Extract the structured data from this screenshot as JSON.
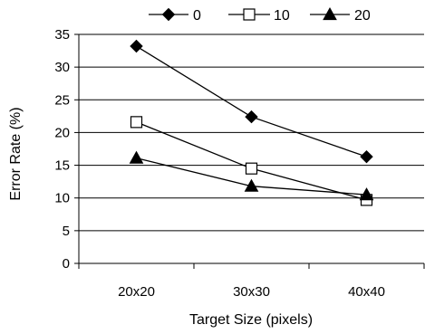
{
  "chart_data": {
    "type": "line",
    "title": "",
    "xlabel": "Target Size (pixels)",
    "ylabel": "Error Rate (%)",
    "categories": [
      "20x20",
      "30x30",
      "40x40"
    ],
    "ylim": [
      0,
      35
    ],
    "yticks": [
      0,
      5,
      10,
      15,
      20,
      25,
      30,
      35
    ],
    "grid": "horizontal",
    "legend_position": "top",
    "series": [
      {
        "name": "0",
        "marker": "diamond",
        "values": [
          33.2,
          22.4,
          16.3
        ]
      },
      {
        "name": "10",
        "marker": "square",
        "values": [
          21.6,
          14.5,
          9.7
        ]
      },
      {
        "name": "20",
        "marker": "triangle",
        "values": [
          16.1,
          11.8,
          10.5
        ]
      }
    ]
  }
}
